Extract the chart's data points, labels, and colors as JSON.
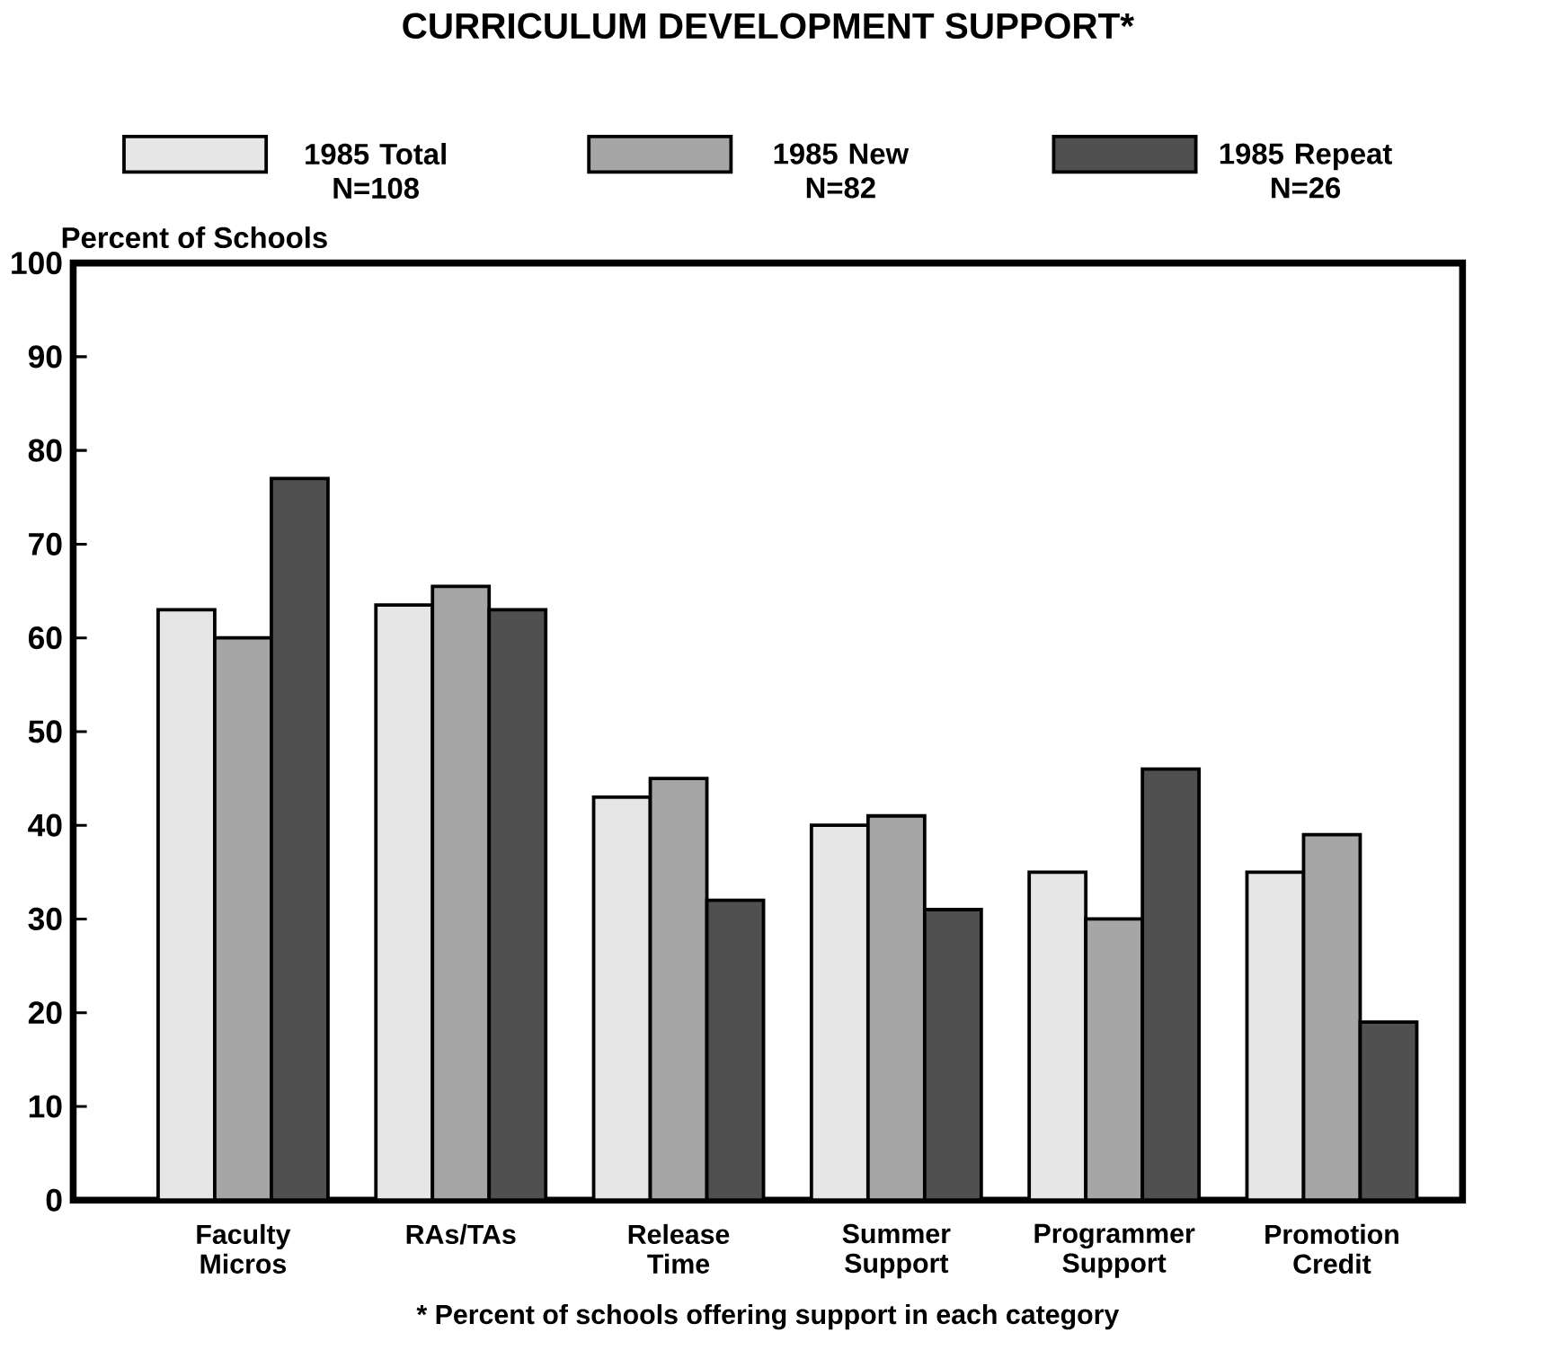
{
  "chart_data": {
    "type": "bar",
    "title": "CURRICULUM DEVELOPMENT SUPPORT*",
    "ylabel": "Percent of Schools",
    "categories": [
      "Faculty Micros",
      "RAs/TAs",
      "Release Time",
      "Summer Support",
      "Programmer Support",
      "Promotion Credit"
    ],
    "series": [
      {
        "name": "1985 Total N=108",
        "color": "#e6e6e6",
        "values": [
          63,
          63.5,
          43,
          40,
          35,
          35
        ]
      },
      {
        "name": "1985 New N=82",
        "color": "#a6a6a6",
        "values": [
          60,
          65.5,
          45,
          41,
          30,
          39
        ]
      },
      {
        "name": "1985 Repeat N=26",
        "color": "#505050",
        "values": [
          77,
          63,
          32,
          31,
          46,
          19
        ]
      }
    ],
    "ylim": [
      0,
      100
    ],
    "yticks": [
      0,
      10,
      20,
      30,
      40,
      50,
      60,
      70,
      80,
      90,
      100
    ],
    "grid": false,
    "legend": "top",
    "annotations": [
      "* Percent of schools offering support in each category"
    ]
  }
}
